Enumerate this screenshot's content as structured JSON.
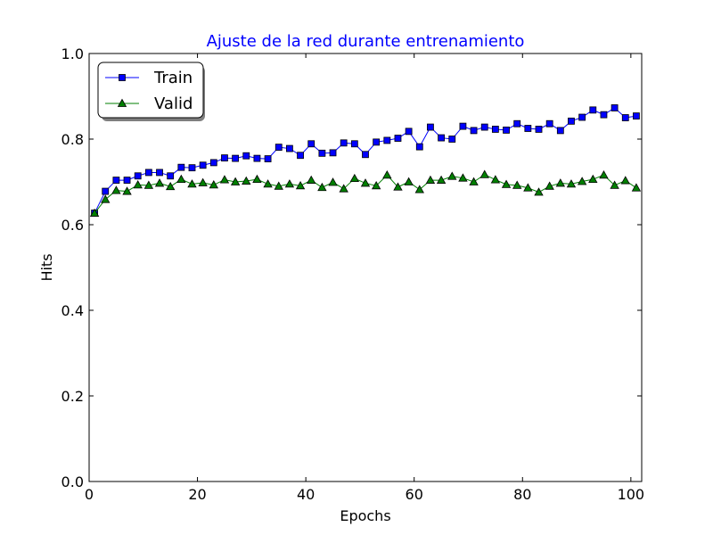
{
  "chart_data": {
    "type": "line",
    "title": "Ajuste de la red durante entrenamiento",
    "xlabel": "Epochs",
    "ylabel": "Hits",
    "xlim": [
      0,
      102
    ],
    "ylim": [
      0,
      1.0
    ],
    "xticks": [
      0,
      20,
      40,
      60,
      80,
      100
    ],
    "xtick_labels": [
      "0",
      "20",
      "40",
      "60",
      "80",
      "100"
    ],
    "yticks": [
      0,
      0.2,
      0.4,
      0.6,
      0.8,
      1.0
    ],
    "ytick_labels": [
      "0.0",
      "0.2",
      "0.4",
      "0.6",
      "0.8",
      "1.0"
    ],
    "grid": false,
    "legend_position": "top-left",
    "x": [
      1,
      3,
      5,
      7,
      9,
      11,
      13,
      15,
      17,
      19,
      21,
      23,
      25,
      27,
      29,
      31,
      33,
      35,
      37,
      39,
      41,
      43,
      45,
      47,
      49,
      51,
      53,
      55,
      57,
      59,
      61,
      63,
      65,
      67,
      69,
      71,
      73,
      75,
      77,
      79,
      81,
      83,
      85,
      87,
      89,
      91,
      93,
      95,
      97,
      99,
      101
    ],
    "series": [
      {
        "name": "Train",
        "color": "#0000ff",
        "marker": "square",
        "values": [
          0.627,
          0.678,
          0.704,
          0.704,
          0.714,
          0.722,
          0.722,
          0.714,
          0.734,
          0.733,
          0.739,
          0.745,
          0.756,
          0.755,
          0.761,
          0.755,
          0.754,
          0.781,
          0.778,
          0.762,
          0.789,
          0.767,
          0.768,
          0.791,
          0.789,
          0.764,
          0.793,
          0.797,
          0.802,
          0.818,
          0.782,
          0.828,
          0.803,
          0.8,
          0.83,
          0.82,
          0.828,
          0.823,
          0.821,
          0.836,
          0.825,
          0.823,
          0.836,
          0.82,
          0.842,
          0.851,
          0.868,
          0.857,
          0.873,
          0.85,
          0.854
        ]
      },
      {
        "name": "Valid",
        "color": "#007f00",
        "marker": "triangle",
        "values": [
          0.627,
          0.659,
          0.68,
          0.678,
          0.693,
          0.692,
          0.697,
          0.689,
          0.706,
          0.695,
          0.698,
          0.693,
          0.705,
          0.7,
          0.702,
          0.706,
          0.695,
          0.69,
          0.695,
          0.691,
          0.704,
          0.687,
          0.699,
          0.684,
          0.708,
          0.697,
          0.691,
          0.716,
          0.688,
          0.7,
          0.682,
          0.704,
          0.704,
          0.713,
          0.709,
          0.7,
          0.717,
          0.705,
          0.694,
          0.692,
          0.686,
          0.676,
          0.69,
          0.697,
          0.695,
          0.701,
          0.706,
          0.716,
          0.692,
          0.703,
          0.686
        ]
      }
    ]
  }
}
